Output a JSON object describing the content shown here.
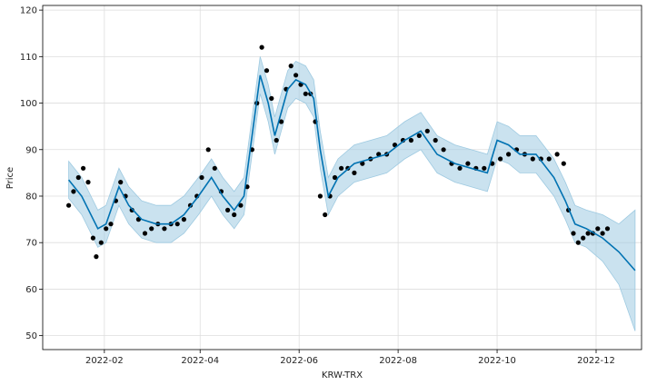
{
  "chart_data": {
    "type": "line",
    "title": "",
    "xlabel": "KRW-TRX",
    "ylabel": "Price",
    "grid": true,
    "legend": "none",
    "xlim": [
      "2021-12-25",
      "2022-12-29"
    ],
    "ylim": [
      47,
      121
    ],
    "x_ticks": [
      "2022-02",
      "2022-04",
      "2022-06",
      "2022-08",
      "2022-10",
      "2022-12"
    ],
    "x_tick_dates": [
      "2022-02-01",
      "2022-04-01",
      "2022-06-01",
      "2022-08-01",
      "2022-10-01",
      "2022-12-01"
    ],
    "y_ticks": [
      50,
      60,
      70,
      80,
      90,
      100,
      110,
      120
    ],
    "colors": {
      "observed": "#000000",
      "forecast": "#0072b2",
      "interval": "#9ecae1"
    },
    "series": [
      {
        "kind": "forecast_yhat",
        "x": [
          "2022-01-10",
          "2022-01-18",
          "2022-01-28",
          "2022-02-02",
          "2022-02-10",
          "2022-02-16",
          "2022-02-24",
          "2022-03-05",
          "2022-03-14",
          "2022-03-22",
          "2022-03-31",
          "2022-04-08",
          "2022-04-15",
          "2022-04-22",
          "2022-04-28",
          "2022-05-03",
          "2022-05-08",
          "2022-05-13",
          "2022-05-17",
          "2022-05-21",
          "2022-05-25",
          "2022-05-30",
          "2022-06-05",
          "2022-06-10",
          "2022-06-14",
          "2022-06-19",
          "2022-06-25",
          "2022-07-05",
          "2022-07-15",
          "2022-07-25",
          "2022-08-05",
          "2022-08-15",
          "2022-08-25",
          "2022-09-05",
          "2022-09-15",
          "2022-09-25",
          "2022-10-01",
          "2022-10-08",
          "2022-10-15",
          "2022-10-25",
          "2022-11-05",
          "2022-11-12",
          "2022-11-18",
          "2022-11-25",
          "2022-12-05",
          "2022-12-15",
          "2022-12-25"
        ],
        "y": [
          83.5,
          80,
          73,
          74,
          82,
          78,
          75,
          74,
          74,
          76,
          80,
          84,
          80,
          77,
          80,
          93,
          106,
          100,
          93,
          98,
          103,
          105,
          104,
          101,
          90,
          80,
          84,
          87,
          88,
          89,
          92,
          94,
          89,
          87,
          86,
          85,
          92,
          91,
          89,
          89,
          84,
          79,
          74,
          73,
          71,
          68,
          64
        ]
      },
      {
        "kind": "forecast_upper",
        "x": [
          "2022-01-10",
          "2022-01-18",
          "2022-01-28",
          "2022-02-02",
          "2022-02-10",
          "2022-02-16",
          "2022-02-24",
          "2022-03-05",
          "2022-03-14",
          "2022-03-22",
          "2022-03-31",
          "2022-04-08",
          "2022-04-15",
          "2022-04-22",
          "2022-04-28",
          "2022-05-03",
          "2022-05-08",
          "2022-05-13",
          "2022-05-17",
          "2022-05-21",
          "2022-05-25",
          "2022-05-30",
          "2022-06-05",
          "2022-06-10",
          "2022-06-14",
          "2022-06-19",
          "2022-06-25",
          "2022-07-05",
          "2022-07-15",
          "2022-07-25",
          "2022-08-05",
          "2022-08-15",
          "2022-08-25",
          "2022-09-05",
          "2022-09-15",
          "2022-09-25",
          "2022-10-01",
          "2022-10-08",
          "2022-10-15",
          "2022-10-25",
          "2022-11-05",
          "2022-11-12",
          "2022-11-18",
          "2022-11-25",
          "2022-12-05",
          "2022-12-15",
          "2022-12-25"
        ],
        "y": [
          87.5,
          84,
          77,
          78,
          86,
          82,
          79,
          78,
          78,
          80,
          84,
          88,
          84,
          81,
          84,
          97,
          110,
          104,
          97,
          102,
          107,
          109,
          108,
          105,
          94,
          84,
          88,
          91,
          92,
          93,
          96,
          98,
          93,
          91,
          90,
          89,
          96,
          95,
          93,
          93,
          88,
          83,
          78,
          77,
          76,
          74,
          77
        ]
      },
      {
        "kind": "forecast_lower",
        "x": [
          "2022-01-10",
          "2022-01-18",
          "2022-01-28",
          "2022-02-02",
          "2022-02-10",
          "2022-02-16",
          "2022-02-24",
          "2022-03-05",
          "2022-03-14",
          "2022-03-22",
          "2022-03-31",
          "2022-04-08",
          "2022-04-15",
          "2022-04-22",
          "2022-04-28",
          "2022-05-03",
          "2022-05-08",
          "2022-05-13",
          "2022-05-17",
          "2022-05-21",
          "2022-05-25",
          "2022-05-30",
          "2022-06-05",
          "2022-06-10",
          "2022-06-14",
          "2022-06-19",
          "2022-06-25",
          "2022-07-05",
          "2022-07-15",
          "2022-07-25",
          "2022-08-05",
          "2022-08-15",
          "2022-08-25",
          "2022-09-05",
          "2022-09-15",
          "2022-09-25",
          "2022-10-01",
          "2022-10-08",
          "2022-10-15",
          "2022-10-25",
          "2022-11-05",
          "2022-11-12",
          "2022-11-18",
          "2022-11-25",
          "2022-12-05",
          "2022-12-15",
          "2022-12-25"
        ],
        "y": [
          79.5,
          76,
          69,
          70,
          78,
          74,
          71,
          70,
          70,
          72,
          76,
          80,
          76,
          73,
          76,
          89,
          102,
          96,
          89,
          94,
          99,
          101,
          100,
          97,
          86,
          76,
          80,
          83,
          84,
          85,
          88,
          90,
          85,
          83,
          82,
          81,
          88,
          87,
          85,
          85,
          80,
          75,
          70,
          69,
          66,
          61,
          51
        ]
      },
      {
        "kind": "observed",
        "x": [
          "2022-01-10",
          "2022-01-13",
          "2022-01-16",
          "2022-01-19",
          "2022-01-22",
          "2022-01-25",
          "2022-01-27",
          "2022-01-30",
          "2022-02-02",
          "2022-02-05",
          "2022-02-08",
          "2022-02-11",
          "2022-02-14",
          "2022-02-18",
          "2022-02-22",
          "2022-02-26",
          "2022-03-02",
          "2022-03-06",
          "2022-03-10",
          "2022-03-14",
          "2022-03-18",
          "2022-03-22",
          "2022-03-26",
          "2022-03-30",
          "2022-04-02",
          "2022-04-06",
          "2022-04-10",
          "2022-04-14",
          "2022-04-18",
          "2022-04-22",
          "2022-04-26",
          "2022-04-30",
          "2022-05-03",
          "2022-05-06",
          "2022-05-09",
          "2022-05-12",
          "2022-05-15",
          "2022-05-18",
          "2022-05-21",
          "2022-05-24",
          "2022-05-27",
          "2022-05-30",
          "2022-06-02",
          "2022-06-05",
          "2022-06-08",
          "2022-06-11",
          "2022-06-14",
          "2022-06-17",
          "2022-06-20",
          "2022-06-23",
          "2022-06-27",
          "2022-07-01",
          "2022-07-05",
          "2022-07-10",
          "2022-07-15",
          "2022-07-20",
          "2022-07-25",
          "2022-07-30",
          "2022-08-04",
          "2022-08-09",
          "2022-08-14",
          "2022-08-19",
          "2022-08-24",
          "2022-08-29",
          "2022-09-03",
          "2022-09-08",
          "2022-09-13",
          "2022-09-18",
          "2022-09-23",
          "2022-09-28",
          "2022-10-03",
          "2022-10-08",
          "2022-10-13",
          "2022-10-18",
          "2022-10-23",
          "2022-10-28",
          "2022-11-02",
          "2022-11-07",
          "2022-11-11",
          "2022-11-14",
          "2022-11-17",
          "2022-11-20",
          "2022-11-23",
          "2022-11-26",
          "2022-11-29",
          "2022-12-02",
          "2022-12-05",
          "2022-12-08"
        ],
        "y": [
          78,
          81,
          84,
          86,
          83,
          71,
          67,
          70,
          73,
          74,
          79,
          83,
          80,
          77,
          75,
          72,
          73,
          74,
          73,
          74,
          74,
          75,
          78,
          80,
          84,
          90,
          86,
          81,
          77,
          76,
          78,
          82,
          90,
          100,
          112,
          107,
          101,
          92,
          96,
          103,
          108,
          106,
          104,
          102,
          102,
          96,
          80,
          76,
          80,
          84,
          86,
          86,
          85,
          87,
          88,
          89,
          89,
          91,
          92,
          92,
          93,
          94,
          92,
          90,
          87,
          86,
          87,
          86,
          86,
          87,
          88,
          89,
          90,
          89,
          88,
          88,
          88,
          89,
          87,
          77,
          72,
          70,
          71,
          72,
          72,
          73,
          72,
          73
        ]
      }
    ]
  }
}
